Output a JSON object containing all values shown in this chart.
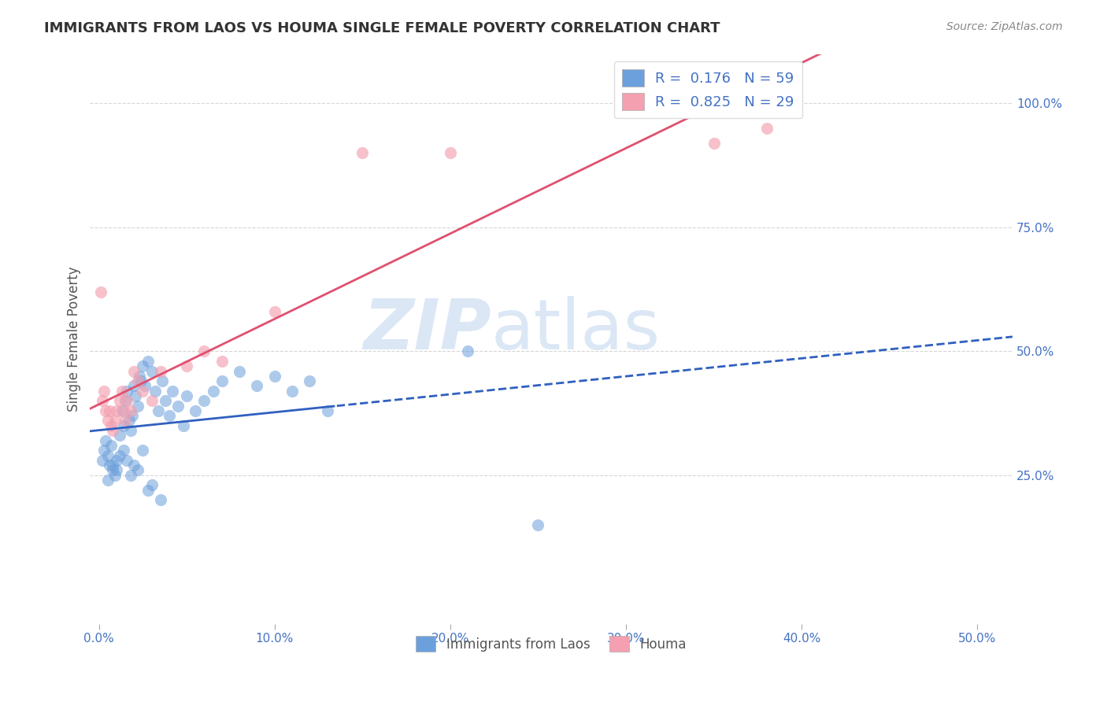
{
  "title": "IMMIGRANTS FROM LAOS VS HOUMA SINGLE FEMALE POVERTY CORRELATION CHART",
  "source": "Source: ZipAtlas.com",
  "ylabel": "Single Female Poverty",
  "yticks": [
    "25.0%",
    "50.0%",
    "75.0%",
    "100.0%"
  ],
  "ytick_vals": [
    0.25,
    0.5,
    0.75,
    1.0
  ],
  "xtick_vals": [
    0.0,
    0.1,
    0.2,
    0.3,
    0.4,
    0.5
  ],
  "xlim": [
    -0.005,
    0.52
  ],
  "ylim": [
    -0.05,
    1.1
  ],
  "blue_color": "#6ca0dc",
  "pink_color": "#f4a0b0",
  "blue_line_color": "#3060c0",
  "pink_line_color": "#e05070",
  "laos_x": [
    0.002,
    0.003,
    0.004,
    0.005,
    0.006,
    0.007,
    0.008,
    0.009,
    0.01,
    0.012,
    0.013,
    0.014,
    0.015,
    0.016,
    0.017,
    0.018,
    0.019,
    0.02,
    0.021,
    0.022,
    0.023,
    0.024,
    0.025,
    0.026,
    0.028,
    0.03,
    0.032,
    0.034,
    0.036,
    0.038,
    0.04,
    0.042,
    0.045,
    0.048,
    0.05,
    0.055,
    0.06,
    0.065,
    0.07,
    0.08,
    0.09,
    0.1,
    0.11,
    0.12,
    0.13,
    0.005,
    0.008,
    0.01,
    0.012,
    0.014,
    0.016,
    0.018,
    0.02,
    0.022,
    0.025,
    0.028,
    0.03,
    0.035,
    0.21,
    0.25
  ],
  "laos_y": [
    0.28,
    0.3,
    0.32,
    0.29,
    0.27,
    0.31,
    0.26,
    0.25,
    0.28,
    0.33,
    0.38,
    0.35,
    0.4,
    0.42,
    0.36,
    0.34,
    0.37,
    0.43,
    0.41,
    0.39,
    0.45,
    0.44,
    0.47,
    0.43,
    0.48,
    0.46,
    0.42,
    0.38,
    0.44,
    0.4,
    0.37,
    0.42,
    0.39,
    0.35,
    0.41,
    0.38,
    0.4,
    0.42,
    0.44,
    0.46,
    0.43,
    0.45,
    0.42,
    0.44,
    0.38,
    0.24,
    0.27,
    0.26,
    0.29,
    0.3,
    0.28,
    0.25,
    0.27,
    0.26,
    0.3,
    0.22,
    0.23,
    0.2,
    0.5,
    0.15
  ],
  "houma_x": [
    0.001,
    0.002,
    0.003,
    0.004,
    0.005,
    0.006,
    0.007,
    0.008,
    0.009,
    0.01,
    0.012,
    0.013,
    0.014,
    0.015,
    0.016,
    0.018,
    0.02,
    0.022,
    0.025,
    0.03,
    0.035,
    0.05,
    0.06,
    0.07,
    0.1,
    0.15,
    0.2,
    0.35,
    0.38
  ],
  "houma_y": [
    0.62,
    0.4,
    0.42,
    0.38,
    0.36,
    0.38,
    0.35,
    0.34,
    0.36,
    0.38,
    0.4,
    0.42,
    0.38,
    0.36,
    0.4,
    0.38,
    0.46,
    0.44,
    0.42,
    0.4,
    0.46,
    0.47,
    0.5,
    0.48,
    0.58,
    0.9,
    0.9,
    0.92,
    0.95
  ]
}
